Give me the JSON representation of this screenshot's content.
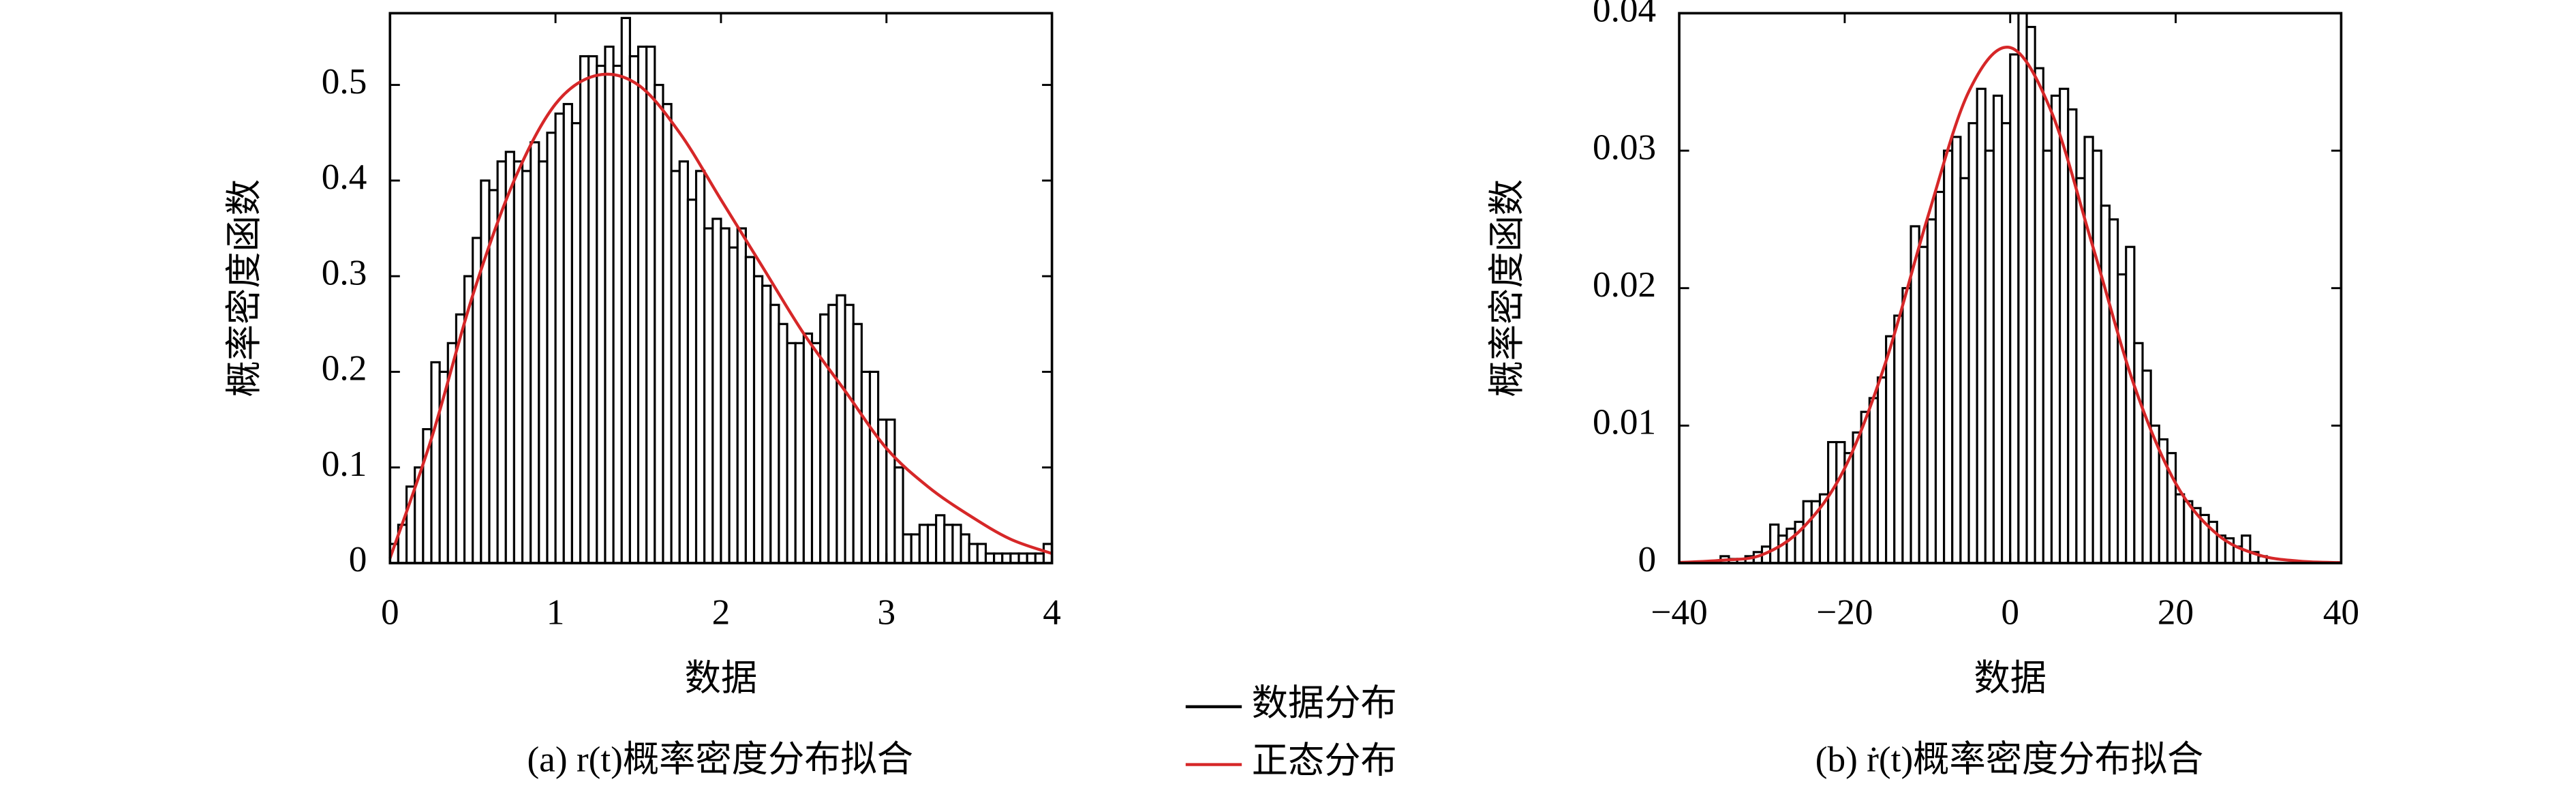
{
  "chart_data": [
    {
      "type": "histogram",
      "xlabel": "数据",
      "ylabel": "概率密度函数",
      "caption": "(a) r(t)概率密度分布拟合",
      "xlim": [
        0,
        4
      ],
      "xticks": [
        0,
        1,
        2,
        3,
        4
      ],
      "ylim": [
        0,
        0.575
      ],
      "yticks": [
        0,
        0.1,
        0.2,
        0.3,
        0.4,
        0.5
      ],
      "histogram": {
        "name": "数据分布",
        "color": "#000000",
        "bins": [
          0,
          0.05,
          0.1,
          0.15,
          0.2,
          0.25,
          0.3,
          0.35,
          0.4,
          0.45,
          0.5,
          0.55,
          0.6,
          0.65,
          0.7,
          0.75,
          0.8,
          0.85,
          0.9,
          0.95,
          1,
          1.05,
          1.1,
          1.15,
          1.2,
          1.25,
          1.3,
          1.35,
          1.4,
          1.45,
          1.5,
          1.55,
          1.6,
          1.65,
          1.7,
          1.75,
          1.8,
          1.85,
          1.9,
          1.95,
          2,
          2.05,
          2.1,
          2.15,
          2.2,
          2.25,
          2.3,
          2.35,
          2.4,
          2.45,
          2.5,
          2.55,
          2.6,
          2.65,
          2.7,
          2.75,
          2.8,
          2.85,
          2.9,
          2.95,
          3,
          3.05,
          3.1,
          3.15,
          3.2,
          3.25,
          3.3,
          3.35,
          3.4,
          3.45,
          3.5,
          3.55,
          3.6,
          3.65,
          3.7,
          3.75,
          3.8,
          3.85,
          3.9,
          3.95,
          4
        ],
        "counts": [
          0.02,
          0.04,
          0.08,
          0.1,
          0.14,
          0.21,
          0.2,
          0.23,
          0.26,
          0.3,
          0.34,
          0.4,
          0.39,
          0.42,
          0.43,
          0.42,
          0.41,
          0.44,
          0.42,
          0.45,
          0.47,
          0.48,
          0.46,
          0.53,
          0.53,
          0.52,
          0.54,
          0.52,
          0.57,
          0.53,
          0.54,
          0.54,
          0.5,
          0.48,
          0.41,
          0.42,
          0.38,
          0.41,
          0.35,
          0.36,
          0.35,
          0.33,
          0.35,
          0.32,
          0.3,
          0.29,
          0.27,
          0.25,
          0.23,
          0.23,
          0.24,
          0.23,
          0.26,
          0.27,
          0.28,
          0.27,
          0.25,
          0.2,
          0.2,
          0.15,
          0.15,
          0.1,
          0.03,
          0.03,
          0.04,
          0.04,
          0.05,
          0.04,
          0.04,
          0.03,
          0.02,
          0.02,
          0.01,
          0.01,
          0.01,
          0.01,
          0.01,
          0.01,
          0.01,
          0.02
        ]
      },
      "curve": {
        "name": "正态分布",
        "color": "#d62728",
        "x": [
          0,
          0.25,
          0.5,
          0.75,
          1,
          1.25,
          1.5,
          1.75,
          2,
          2.25,
          2.5,
          2.75,
          3,
          3.25,
          3.5,
          3.75,
          4
        ],
        "y": [
          0.005,
          0.13,
          0.28,
          0.4,
          0.48,
          0.51,
          0.5,
          0.45,
          0.38,
          0.31,
          0.24,
          0.18,
          0.12,
          0.08,
          0.05,
          0.025,
          0.01
        ]
      }
    },
    {
      "type": "histogram",
      "xlabel": "数据",
      "ylabel": "概率密度函数",
      "caption": "(b) ṙ(t)概率密度分布拟合",
      "xlim": [
        -40,
        40
      ],
      "xticks": [
        {
          "value": -40,
          "label": "−40"
        },
        {
          "value": -20,
          "label": "−20"
        },
        0,
        20,
        40
      ],
      "ylim": [
        0,
        0.04
      ],
      "yticks": [
        0,
        0.01,
        0.02,
        0.03,
        0.04
      ],
      "histogram": {
        "color": "#000000",
        "bins": [
          -35,
          -34,
          -33,
          -32,
          -31,
          -30,
          -29,
          -28,
          -27,
          -26,
          -25,
          -24,
          -23,
          -22,
          -21,
          -20,
          -19,
          -18,
          -17,
          -16,
          -15,
          -14,
          -13,
          -12,
          -11,
          -10,
          -9,
          -8,
          -7,
          -6,
          -5,
          -4,
          -3,
          -2,
          -1,
          0,
          1,
          2,
          3,
          4,
          5,
          6,
          7,
          8,
          9,
          10,
          11,
          12,
          13,
          14,
          15,
          16,
          17,
          18,
          19,
          20,
          21,
          22,
          23,
          24,
          25,
          26,
          27,
          28,
          29,
          30,
          31
        ],
        "counts": [
          0.0005,
          0.0003,
          0.0003,
          0.0005,
          0.0008,
          0.0012,
          0.0028,
          0.002,
          0.0025,
          0.003,
          0.0045,
          0.0045,
          0.005,
          0.0088,
          0.0088,
          0.008,
          0.0095,
          0.011,
          0.012,
          0.0135,
          0.0165,
          0.018,
          0.02,
          0.0245,
          0.023,
          0.025,
          0.027,
          0.03,
          0.031,
          0.028,
          0.032,
          0.0345,
          0.03,
          0.034,
          0.032,
          0.037,
          0.04,
          0.039,
          0.036,
          0.03,
          0.034,
          0.0345,
          0.033,
          0.028,
          0.031,
          0.03,
          0.026,
          0.025,
          0.021,
          0.023,
          0.016,
          0.014,
          0.01,
          0.009,
          0.008,
          0.005,
          0.0045,
          0.004,
          0.0035,
          0.003,
          0.002,
          0.0018,
          0.0012,
          0.002,
          0.0008,
          0.0005
        ]
      },
      "curve": {
        "color": "#d62728",
        "x": [
          -40,
          -35,
          -30,
          -25,
          -20,
          -15,
          -10,
          -5,
          0,
          5,
          10,
          15,
          20,
          25,
          30,
          35,
          40
        ],
        "y": [
          4e-05,
          0.0002,
          0.0006,
          0.0026,
          0.0069,
          0.0147,
          0.0251,
          0.0343,
          0.0375,
          0.0328,
          0.023,
          0.0129,
          0.0058,
          0.0021,
          0.0006,
          0.00014,
          3e-05
        ]
      }
    }
  ]
}
